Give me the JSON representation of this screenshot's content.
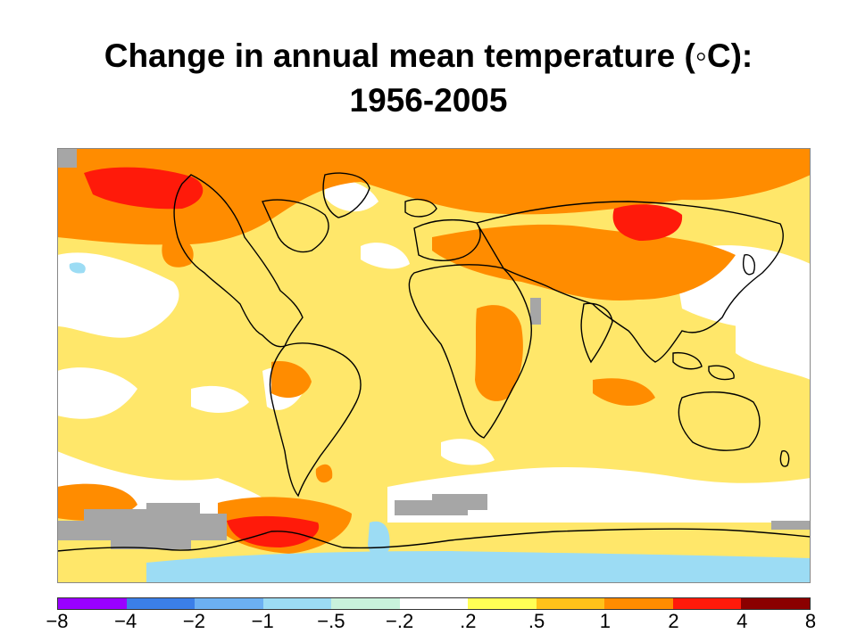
{
  "title_line1": "Change in annual mean temperature (◦C):",
  "title_line2": "1956-2005",
  "legend": {
    "ticks": [
      "−8",
      "−4",
      "−2",
      "−1",
      "−.5",
      "−.2",
      ".2",
      ".5",
      "1",
      "2",
      "4",
      "8"
    ],
    "colors": [
      "#9900ff",
      "#3b7fe8",
      "#6cb0f2",
      "#9cdcf4",
      "#c9f2dc",
      "#ffffff",
      "#ffff55",
      "#ffc21a",
      "#ff8c00",
      "#ff1a0a",
      "#8b0000"
    ]
  },
  "map": {
    "ocean_base_color": "#ffe76a",
    "no_data_color": "#a6a6a6",
    "coastline_color": "#000000",
    "regions": {
      "arctic_band": "#ff8c00",
      "alaska_canada_hotspot": "#ff1a0a",
      "siberia_hotspot": "#ff1a0a",
      "antarctic_peninsula_hotspot": "#ff1a0a",
      "north_pacific_neutral": "#ffffff",
      "southern_ocean_neutral": "#ffffff",
      "antarctica_cooling": "#9cdcf4",
      "no_data_regions": "#a6a6a6"
    }
  }
}
